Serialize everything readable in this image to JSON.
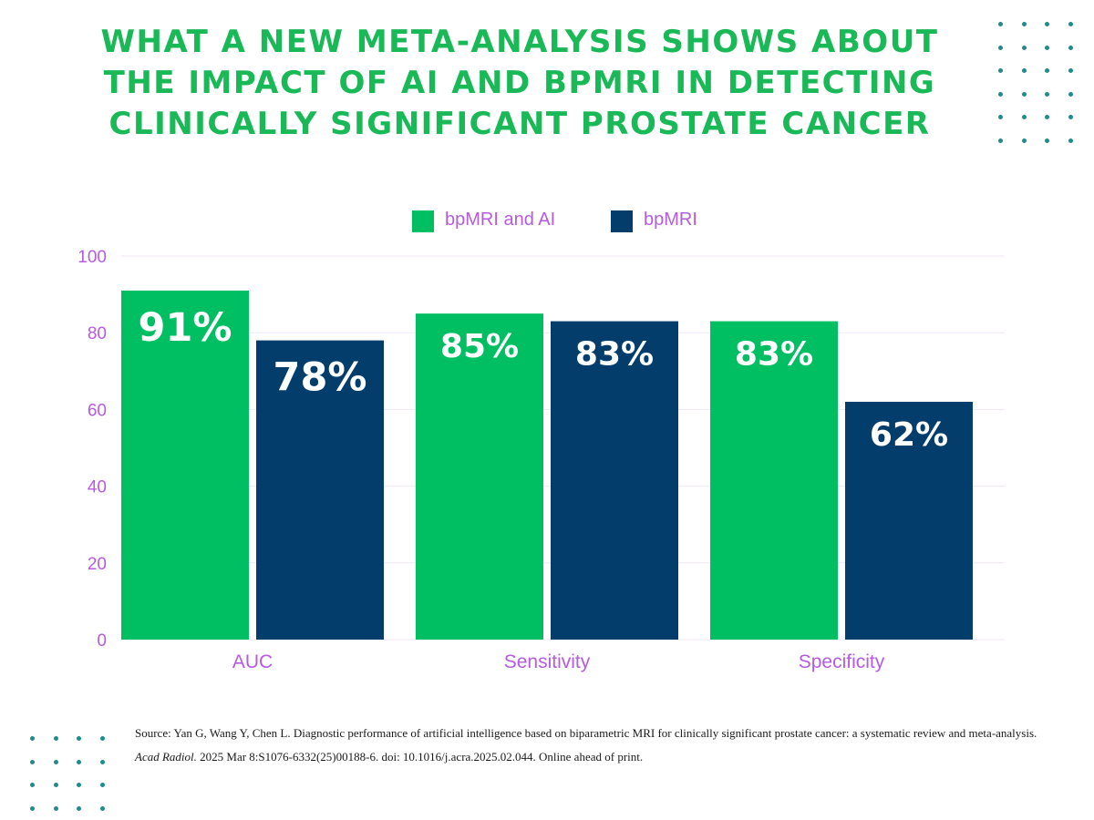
{
  "title_lines": [
    "WHAT A NEW META-ANALYSIS SHOWS ABOUT",
    "THE IMPACT OF AI AND BPMRI IN DETECTING",
    "CLINICALLY SIGNIFICANT PROSTATE CANCER"
  ],
  "chart_data": {
    "type": "bar",
    "title": "WHAT A NEW META-ANALYSIS SHOWS ABOUT THE IMPACT OF AI AND BPMRI IN DETECTING CLINICALLY SIGNIFICANT PROSTATE CANCER",
    "categories": [
      "AUC",
      "Sensitivity",
      "Specificity"
    ],
    "series": [
      {
        "name": "bpMRI and AI",
        "values": [
          91,
          85,
          83
        ],
        "labels": [
          "91%",
          "85%",
          "83%"
        ],
        "color": "#00bf63"
      },
      {
        "name": "bpMRI",
        "values": [
          78,
          83,
          62
        ],
        "labels": [
          "78%",
          "83%",
          "62%"
        ],
        "color": "#033d6c"
      }
    ],
    "ylim": [
      0,
      100
    ],
    "yticks": [
      "0",
      "20",
      "40",
      "60",
      "80",
      "100"
    ],
    "xlabel": "",
    "ylabel": "",
    "grid": true,
    "legend_position": "top-center"
  },
  "colors": {
    "title": "#1ab957",
    "axis_text": "#b65be0",
    "gridline": "#f0e6f5",
    "dots": "#1e8c8c",
    "data_label": "#ffffff"
  },
  "source": {
    "prefix": "Source: Yan G, Wang Y, Chen L. Diagnostic performance of artificial intelligence based on biparametric MRI for clinically significant prostate cancer: a systematic review and meta-analysis.",
    "journal": "Acad Radiol.",
    "suffix": "2025 Mar 8:S1076-6332(25)00188-6. doi: 10.1016/j.acra.2025.02.044. Online ahead of print."
  }
}
